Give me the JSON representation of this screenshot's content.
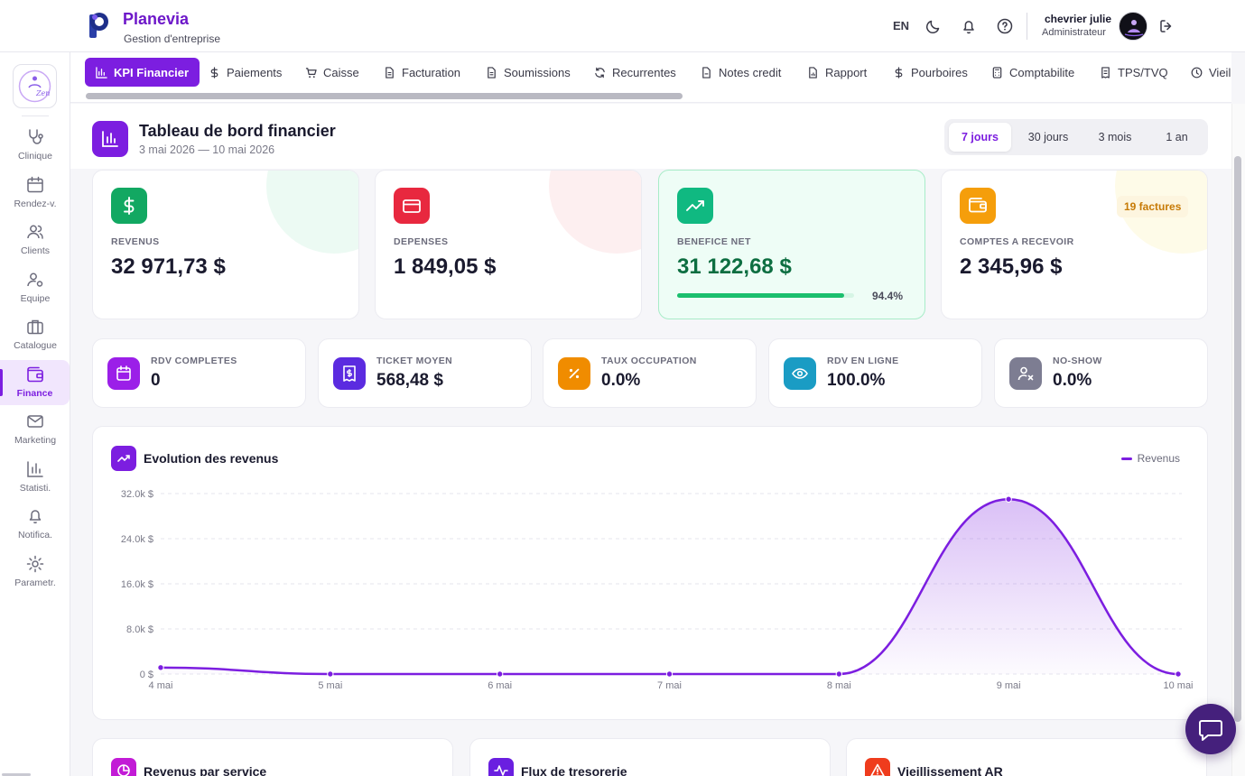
{
  "header": {
    "brand_name": "Planevia",
    "brand_subtitle": "Gestion d'entreprise",
    "language": "EN",
    "user_name": "chevrier julie",
    "user_role": "Administrateur",
    "icons": [
      "moon-icon",
      "bell-icon",
      "help-icon",
      "logout-icon"
    ]
  },
  "sidebar": {
    "items": [
      {
        "label": "Clinique",
        "icon": "stethoscope-icon"
      },
      {
        "label": "Rendez-v.",
        "icon": "calendar-icon"
      },
      {
        "label": "Clients",
        "icon": "users-icon"
      },
      {
        "label": "Equipe",
        "icon": "team-gear-icon"
      },
      {
        "label": "Catalogue",
        "icon": "briefcase-icon"
      },
      {
        "label": "Finance",
        "icon": "wallet-icon",
        "active": true
      },
      {
        "label": "Marketing",
        "icon": "mail-icon"
      },
      {
        "label": "Statisti.",
        "icon": "bar-chart-icon"
      },
      {
        "label": "Notifica.",
        "icon": "bell-icon"
      },
      {
        "label": "Parametr.",
        "icon": "gear-icon"
      }
    ]
  },
  "tabs": [
    {
      "label": "KPI Financier",
      "icon": "bar-chart-icon",
      "active": true
    },
    {
      "label": "Paiements",
      "icon": "dollar-icon"
    },
    {
      "label": "Caisse",
      "icon": "cart-icon"
    },
    {
      "label": "Facturation",
      "icon": "document-icon"
    },
    {
      "label": "Soumissions",
      "icon": "document-icon"
    },
    {
      "label": "Recurrentes",
      "icon": "refresh-icon"
    },
    {
      "label": "Notes credit",
      "icon": "document-minus-icon"
    },
    {
      "label": "Rapport",
      "icon": "document-chart-icon"
    },
    {
      "label": "Pourboires",
      "icon": "dollar-icon"
    },
    {
      "label": "Comptabilite",
      "icon": "calculator-icon"
    },
    {
      "label": "TPS/TVQ",
      "icon": "receipt-icon"
    },
    {
      "label": "Vieil",
      "icon": "clock-icon"
    }
  ],
  "page": {
    "title": "Tableau de bord financier",
    "date_range": "3 mai 2026 — 10 mai 2026",
    "ranges": [
      "7 jours",
      "30 jours",
      "3 mois",
      "1 an"
    ],
    "selected_range": "7 jours"
  },
  "kpis": [
    {
      "label": "REVENUS",
      "value": "32 971,73 $",
      "icon": "dollar-icon",
      "color": "#12a862"
    },
    {
      "label": "DEPENSES",
      "value": "1 849,05 $",
      "icon": "credit-card-icon",
      "color": "#e8283f"
    },
    {
      "label": "BENEFICE NET",
      "value": "31 122,68 $",
      "icon": "trending-up-icon",
      "color": "#10b981",
      "progress": 0.944,
      "progress_label": "94.4%"
    },
    {
      "label": "COMPTES A RECEVOIR",
      "value": "2 345,96 $",
      "icon": "wallet-icon",
      "color": "#f59e0b",
      "badge": "19 factures"
    }
  ],
  "mini_kpis": [
    {
      "label": "RDV COMPLETES",
      "value": "0",
      "icon": "calendar-icon",
      "color": "#9b1fe8"
    },
    {
      "label": "TICKET MOYEN",
      "value": "568,48 $",
      "icon": "receipt-icon",
      "color": "#5b2be0"
    },
    {
      "label": "TAUX OCCUPATION",
      "value": "0.0%",
      "icon": "percent-icon",
      "color": "#f08c00"
    },
    {
      "label": "RDV EN LIGNE",
      "value": "100.0%",
      "icon": "eye-icon",
      "color": "#1a9cc4"
    },
    {
      "label": "NO-SHOW",
      "value": "0.0%",
      "icon": "user-x-icon",
      "color": "#7d7d92"
    }
  ],
  "revenue_chart": {
    "title": "Evolution des revenus",
    "legend": "Revenus"
  },
  "chart_data": {
    "type": "area",
    "categories": [
      "4 mai",
      "5 mai",
      "6 mai",
      "7 mai",
      "8 mai",
      "9 mai",
      "10 mai"
    ],
    "series": [
      {
        "name": "Revenus",
        "values": [
          1150,
          0,
          0,
          0,
          0,
          31000,
          0
        ]
      }
    ],
    "y_ticks": [
      "0 $",
      "8.0k $",
      "16.0k $",
      "24.0k $",
      "32.0k $"
    ],
    "ylim": [
      0,
      32000
    ],
    "color": "#7c1ee0",
    "grid": true,
    "legend_position": "top-right"
  },
  "bottom_cards": [
    {
      "title": "Revenus par service",
      "icon": "pie-chart-icon",
      "color": "#c21bd6"
    },
    {
      "title": "Flux de tresorerie",
      "icon": "activity-icon",
      "color": "#6a1fe0"
    },
    {
      "title": "Vieillissement AR",
      "icon": "warning-icon",
      "color": "#ef3c1d"
    }
  ]
}
